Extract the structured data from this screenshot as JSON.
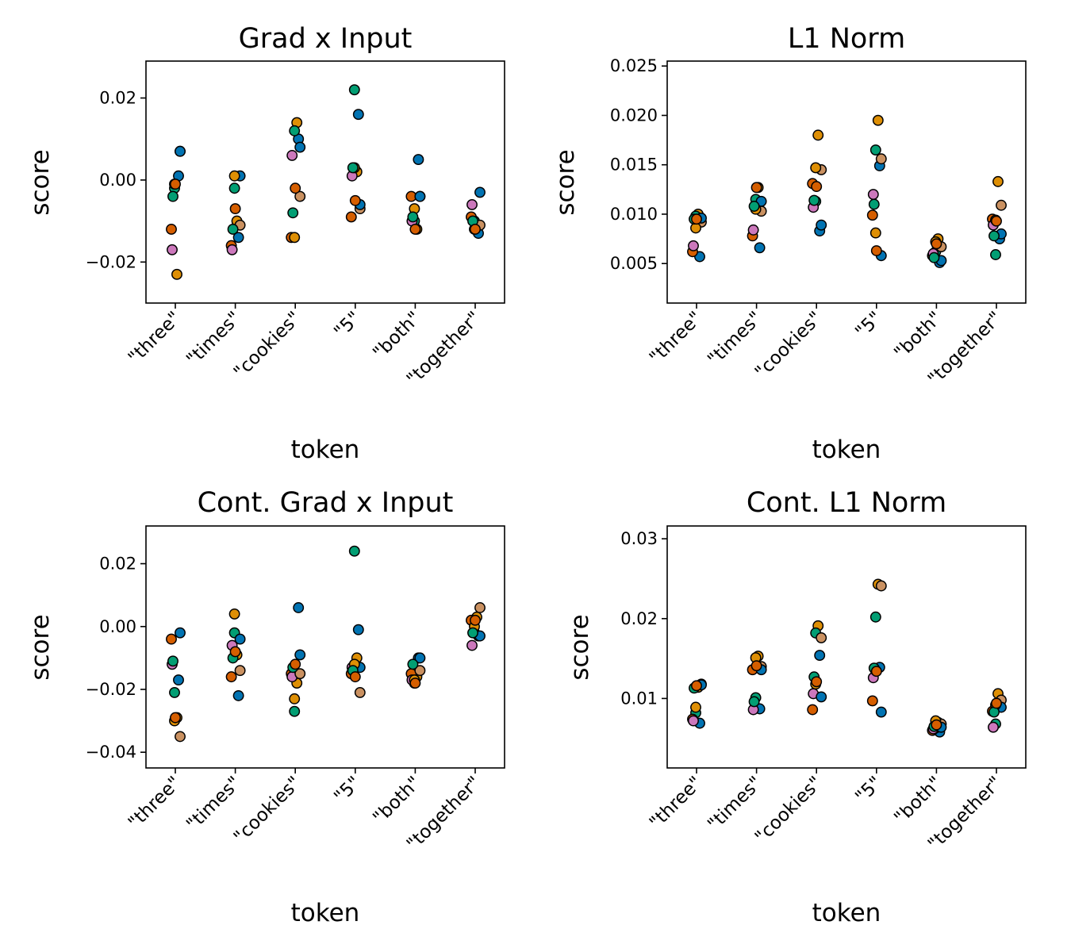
{
  "palette": [
    "#0173b2",
    "#de8f05",
    "#029e73",
    "#d55e00",
    "#cc78bc",
    "#ca9161"
  ],
  "chart_data": [
    {
      "type": "scatter",
      "title": "Grad x Input",
      "xlabel": "token",
      "ylabel": "score",
      "categories": [
        "\"three\"",
        "\"times\"",
        "\"cookies\"",
        "\"5\"",
        "\"both\"",
        "\"together\""
      ],
      "ylim": [
        -0.03,
        0.029
      ],
      "yticks": [
        -0.02,
        0.0,
        0.02
      ],
      "ytick_labels": [
        "−0.02",
        "0.00",
        "0.02"
      ],
      "series": [
        {
          "name": "s1",
          "color_index": 0,
          "values": [
            0.001,
            -0.014,
            0.01,
            0.016,
            0.005,
            -0.013
          ]
        },
        {
          "name": "s2",
          "color_index": 1,
          "values": [
            -0.023,
            -0.01,
            0.014,
            0.002,
            -0.012,
            -0.011
          ]
        },
        {
          "name": "s3",
          "color_index": 2,
          "values": [
            -0.002,
            -0.002,
            0.012,
            0.022,
            -0.01,
            -0.01
          ]
        },
        {
          "name": "s4",
          "color_index": 3,
          "values": [
            -0.012,
            -0.016,
            -0.014,
            -0.009,
            -0.004,
            -0.009
          ]
        },
        {
          "name": "s5",
          "color_index": 4,
          "values": [
            -0.017,
            -0.017,
            0.006,
            0.001,
            -0.01,
            -0.006
          ]
        },
        {
          "name": "s6",
          "color_index": 5,
          "values": [
            0.007,
            -0.011,
            -0.004,
            -0.007,
            -0.004,
            -0.011
          ]
        },
        {
          "name": "s7",
          "color_index": 0,
          "values": [
            0.007,
            0.001,
            0.008,
            -0.006,
            -0.004,
            -0.003
          ]
        },
        {
          "name": "s8",
          "color_index": 1,
          "values": [
            -0.001,
            0.001,
            -0.014,
            0.003,
            -0.007,
            -0.012
          ]
        },
        {
          "name": "s9",
          "color_index": 2,
          "values": [
            -0.004,
            -0.012,
            -0.008,
            0.003,
            -0.009,
            -0.01
          ]
        },
        {
          "name": "s10",
          "color_index": 3,
          "values": [
            -0.001,
            -0.007,
            -0.002,
            -0.005,
            -0.012,
            -0.012
          ]
        }
      ]
    },
    {
      "type": "scatter",
      "title": "L1 Norm",
      "xlabel": "token",
      "ylabel": "score",
      "categories": [
        "\"three\"",
        "\"times\"",
        "\"cookies\"",
        "\"5\"",
        "\"both\"",
        "\"together\""
      ],
      "ylim": [
        0.001,
        0.0255
      ],
      "yticks": [
        0.005,
        0.01,
        0.015,
        0.02,
        0.025
      ],
      "ytick_labels": [
        "0.005",
        "0.010",
        "0.015",
        "0.020",
        "0.025"
      ],
      "series": [
        {
          "name": "s1",
          "color_index": 0,
          "values": [
            0.0057,
            0.0066,
            0.0083,
            0.0149,
            0.0051,
            0.0075
          ]
        },
        {
          "name": "s2",
          "color_index": 1,
          "values": [
            0.01,
            0.0127,
            0.018,
            0.0195,
            0.0075,
            0.0133
          ]
        },
        {
          "name": "s3",
          "color_index": 2,
          "values": [
            0.0098,
            0.0115,
            0.0113,
            0.0165,
            0.0062,
            0.0059
          ]
        },
        {
          "name": "s4",
          "color_index": 3,
          "values": [
            0.0062,
            0.0078,
            0.0131,
            0.0099,
            0.0058,
            0.0095
          ]
        },
        {
          "name": "s5",
          "color_index": 4,
          "values": [
            0.0068,
            0.0084,
            0.0107,
            0.012,
            0.006,
            0.0089
          ]
        },
        {
          "name": "s6",
          "color_index": 5,
          "values": [
            0.0092,
            0.0103,
            0.0145,
            0.0156,
            0.0067,
            0.0109
          ]
        },
        {
          "name": "s7",
          "color_index": 0,
          "values": [
            0.0096,
            0.0113,
            0.0089,
            0.0058,
            0.0053,
            0.008
          ]
        },
        {
          "name": "s8",
          "color_index": 1,
          "values": [
            0.0086,
            0.0105,
            0.0147,
            0.0081,
            0.0072,
            0.0094
          ]
        },
        {
          "name": "s9",
          "color_index": 2,
          "values": [
            0.0095,
            0.0108,
            0.0114,
            0.011,
            0.0056,
            0.0078
          ]
        },
        {
          "name": "s10",
          "color_index": 3,
          "values": [
            0.0095,
            0.0127,
            0.0128,
            0.0063,
            0.007,
            0.0093
          ]
        }
      ]
    },
    {
      "type": "scatter",
      "title": "Cont. Grad x Input",
      "xlabel": "token",
      "ylabel": "score",
      "categories": [
        "\"three\"",
        "\"times\"",
        "\"cookies\"",
        "\"5\"",
        "\"both\"",
        "\"together\""
      ],
      "ylim": [
        -0.045,
        0.032
      ],
      "yticks": [
        -0.04,
        -0.02,
        0.0,
        0.02
      ],
      "ytick_labels": [
        "−0.04",
        "−0.02",
        "0.00",
        "0.02"
      ],
      "series": [
        {
          "name": "s1",
          "color_index": 0,
          "values": [
            -0.017,
            -0.022,
            0.006,
            -0.001,
            -0.01,
            -0.003
          ]
        },
        {
          "name": "s2",
          "color_index": 1,
          "values": [
            -0.029,
            -0.009,
            -0.018,
            -0.01,
            -0.016,
            0.003
          ]
        },
        {
          "name": "s3",
          "color_index": 2,
          "values": [
            -0.021,
            -0.002,
            -0.027,
            0.024,
            -0.018,
            -0.002
          ]
        },
        {
          "name": "s4",
          "color_index": 3,
          "values": [
            -0.004,
            -0.016,
            -0.015,
            -0.015,
            -0.015,
            0.002
          ]
        },
        {
          "name": "s5",
          "color_index": 4,
          "values": [
            -0.012,
            -0.006,
            -0.016,
            -0.013,
            -0.017,
            -0.006
          ]
        },
        {
          "name": "s6",
          "color_index": 5,
          "values": [
            -0.035,
            -0.014,
            -0.015,
            -0.021,
            -0.014,
            0.006
          ]
        },
        {
          "name": "s7",
          "color_index": 0,
          "values": [
            -0.002,
            -0.004,
            -0.009,
            -0.013,
            -0.01,
            -0.003
          ]
        },
        {
          "name": "s8",
          "color_index": 1,
          "values": [
            -0.03,
            0.004,
            -0.023,
            -0.012,
            -0.017,
            0.0
          ]
        },
        {
          "name": "s9",
          "color_index": 2,
          "values": [
            -0.011,
            -0.01,
            -0.013,
            -0.014,
            -0.012,
            -0.002
          ]
        },
        {
          "name": "s10",
          "color_index": 3,
          "values": [
            -0.029,
            -0.008,
            -0.012,
            -0.016,
            -0.018,
            0.002
          ]
        }
      ]
    },
    {
      "type": "scatter",
      "title": "Cont. L1 Norm",
      "xlabel": "token",
      "ylabel": "score",
      "categories": [
        "\"three\"",
        "\"times\"",
        "\"cookies\"",
        "\"5\"",
        "\"both\"",
        "\"together\""
      ],
      "ylim": [
        0.0013,
        0.0316
      ],
      "yticks": [
        0.01,
        0.02,
        0.03
      ],
      "ytick_labels": [
        "0.01",
        "0.02",
        "0.03"
      ],
      "series": [
        {
          "name": "s1",
          "color_index": 0,
          "values": [
            0.0069,
            0.0087,
            0.0154,
            0.0139,
            0.0058,
            0.0092
          ]
        },
        {
          "name": "s2",
          "color_index": 1,
          "values": [
            0.0114,
            0.0153,
            0.0191,
            0.0243,
            0.007,
            0.0106
          ]
        },
        {
          "name": "s3",
          "color_index": 2,
          "values": [
            0.0082,
            0.0101,
            0.0182,
            0.0202,
            0.0063,
            0.0068
          ]
        },
        {
          "name": "s4",
          "color_index": 3,
          "values": [
            0.0074,
            0.0136,
            0.0086,
            0.0097,
            0.006,
            0.0084
          ]
        },
        {
          "name": "s5",
          "color_index": 4,
          "values": [
            0.0072,
            0.0086,
            0.0106,
            0.0126,
            0.0062,
            0.0064
          ]
        },
        {
          "name": "s6",
          "color_index": 5,
          "values": [
            0.0118,
            0.014,
            0.0176,
            0.0241,
            0.0068,
            0.0098
          ]
        },
        {
          "name": "s7",
          "color_index": 0,
          "values": [
            0.0117,
            0.0136,
            0.0102,
            0.0083,
            0.0064,
            0.0089
          ]
        },
        {
          "name": "s8",
          "color_index": 1,
          "values": [
            0.0089,
            0.0151,
            0.0118,
            0.0135,
            0.0072,
            0.0092
          ]
        },
        {
          "name": "s9",
          "color_index": 2,
          "values": [
            0.0113,
            0.0096,
            0.0127,
            0.0138,
            0.0065,
            0.0083
          ]
        },
        {
          "name": "s10",
          "color_index": 3,
          "values": [
            0.0116,
            0.0141,
            0.0121,
            0.0134,
            0.0067,
            0.0094
          ]
        }
      ]
    }
  ]
}
